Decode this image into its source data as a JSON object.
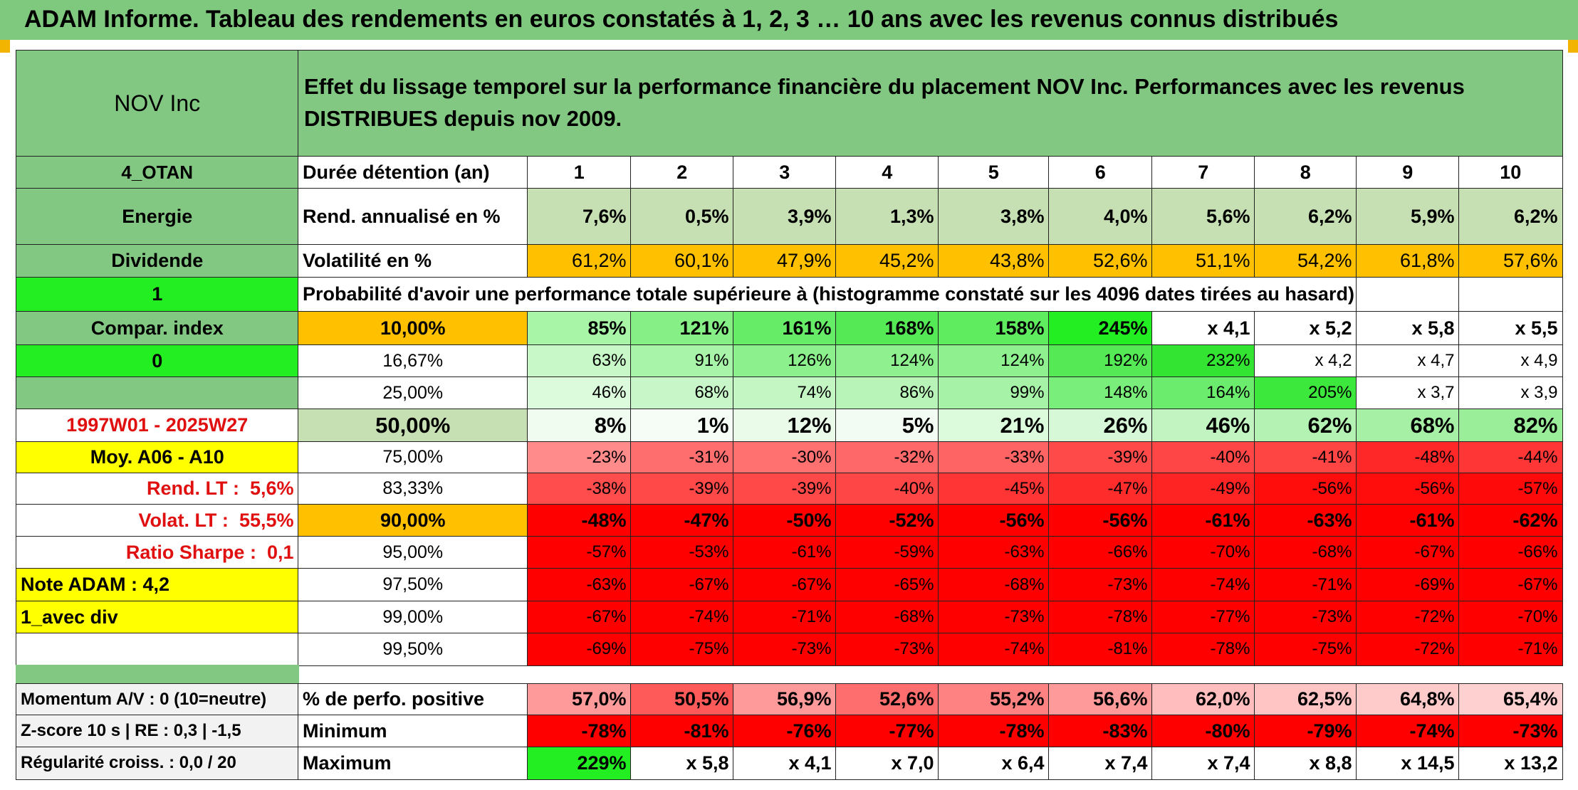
{
  "title": "ADAM Informe. Tableau des rendements en euros constatés à 1, 2, 3 … 10 ans avec les revenus connus distribués",
  "header": {
    "company": "NOV Inc",
    "description": "Effet du lissage temporel sur la performance financière du placement NOV Inc. Performances avec les revenus DISTRIBUES depuis nov 2009."
  },
  "left_panel": {
    "portfolio": "4_OTAN",
    "sector": "Energie",
    "income_type": "Dividende",
    "toggle_1": "1",
    "compar_index": "Compar. index",
    "toggle_0": "0",
    "period": "1997W01 - 2025W27",
    "moy": "Moy. A06 - A10",
    "rend_lt_label": "Rend. LT :",
    "rend_lt_value": "5,6%",
    "volat_lt_label": "Volat. LT :",
    "volat_lt_value": "55,5%",
    "sharpe_label": "Ratio Sharpe :",
    "sharpe_value": "0,1",
    "note_adam": "Note ADAM : 4,2",
    "avec_div": "1_avec div"
  },
  "main": {
    "duration_label": "Durée détention (an)",
    "years": [
      "1",
      "2",
      "3",
      "4",
      "5",
      "6",
      "7",
      "8",
      "9",
      "10"
    ],
    "rend_label": "Rend. annualisé en %",
    "rend_values": [
      "7,6%",
      "0,5%",
      "3,9%",
      "1,3%",
      "3,8%",
      "4,0%",
      "5,6%",
      "6,2%",
      "5,9%",
      "6,2%"
    ],
    "vol_label": "Volatilité en %",
    "vol_values": [
      "61,2%",
      "60,1%",
      "47,9%",
      "45,2%",
      "43,8%",
      "52,6%",
      "51,1%",
      "54,2%",
      "61,8%",
      "57,6%"
    ],
    "prob_title": "Probabilité d'avoir une performance totale supérieure à (histogramme constaté sur les 4096 dates tirées au hasard)",
    "prob_rows": [
      {
        "label": "10,00%",
        "values": [
          "85%",
          "121%",
          "161%",
          "168%",
          "158%",
          "245%",
          "x 4,1",
          "x 5,2",
          "x 5,8",
          "x 5,5"
        ]
      },
      {
        "label": "16,67%",
        "values": [
          "63%",
          "91%",
          "126%",
          "124%",
          "124%",
          "192%",
          "232%",
          "x 4,2",
          "x 4,7",
          "x 4,9"
        ]
      },
      {
        "label": "25,00%",
        "values": [
          "46%",
          "68%",
          "74%",
          "86%",
          "99%",
          "148%",
          "164%",
          "205%",
          "x 3,7",
          "x 3,9"
        ]
      },
      {
        "label": "50,00%",
        "values": [
          "8%",
          "1%",
          "12%",
          "5%",
          "21%",
          "26%",
          "46%",
          "62%",
          "68%",
          "82%"
        ]
      },
      {
        "label": "75,00%",
        "values": [
          "-23%",
          "-31%",
          "-30%",
          "-32%",
          "-33%",
          "-39%",
          "-40%",
          "-41%",
          "-48%",
          "-44%"
        ]
      },
      {
        "label": "83,33%",
        "values": [
          "-38%",
          "-39%",
          "-39%",
          "-40%",
          "-45%",
          "-47%",
          "-49%",
          "-56%",
          "-56%",
          "-57%"
        ]
      },
      {
        "label": "90,00%",
        "values": [
          "-48%",
          "-47%",
          "-50%",
          "-52%",
          "-56%",
          "-56%",
          "-61%",
          "-63%",
          "-61%",
          "-62%"
        ]
      },
      {
        "label": "95,00%",
        "values": [
          "-57%",
          "-53%",
          "-61%",
          "-59%",
          "-63%",
          "-66%",
          "-70%",
          "-68%",
          "-67%",
          "-66%"
        ]
      },
      {
        "label": "97,50%",
        "values": [
          "-63%",
          "-67%",
          "-67%",
          "-65%",
          "-68%",
          "-73%",
          "-74%",
          "-71%",
          "-69%",
          "-67%"
        ]
      },
      {
        "label": "99,00%",
        "values": [
          "-67%",
          "-74%",
          "-71%",
          "-68%",
          "-73%",
          "-78%",
          "-77%",
          "-73%",
          "-72%",
          "-70%"
        ]
      },
      {
        "label": "99,50%",
        "values": [
          "-69%",
          "-75%",
          "-73%",
          "-73%",
          "-74%",
          "-81%",
          "-78%",
          "-75%",
          "-72%",
          "-71%"
        ]
      }
    ],
    "bottom_rows": [
      {
        "left": "Momentum A/V : 0 (10=neutre)",
        "label": "% de perfo. positive",
        "values": [
          "57,0%",
          "50,5%",
          "56,9%",
          "52,6%",
          "55,2%",
          "56,6%",
          "62,0%",
          "62,5%",
          "64,8%",
          "65,4%"
        ]
      },
      {
        "left": "Z-score 10 s | RE : 0,3 | -1,5",
        "label": "Minimum",
        "values": [
          "-78%",
          "-81%",
          "-76%",
          "-77%",
          "-78%",
          "-83%",
          "-80%",
          "-79%",
          "-74%",
          "-73%"
        ]
      },
      {
        "left": "Régularité croiss. : 0,0 / 20",
        "label": "Maximum",
        "values": [
          "229%",
          "x 5,8",
          "x 4,1",
          "x 7,0",
          "x 6,4",
          "x 7,4",
          "x 7,4",
          "x 8,8",
          "x 14,5",
          "x 13,2"
        ]
      }
    ]
  },
  "colors": {
    "title_green": "#7fc97f",
    "header_green": "#82c882",
    "bright_green": "#22ee22",
    "yellow": "#ffff00",
    "orange": "#ffc000",
    "light_green": "#c6e0b4",
    "red": "#ff0000"
  }
}
